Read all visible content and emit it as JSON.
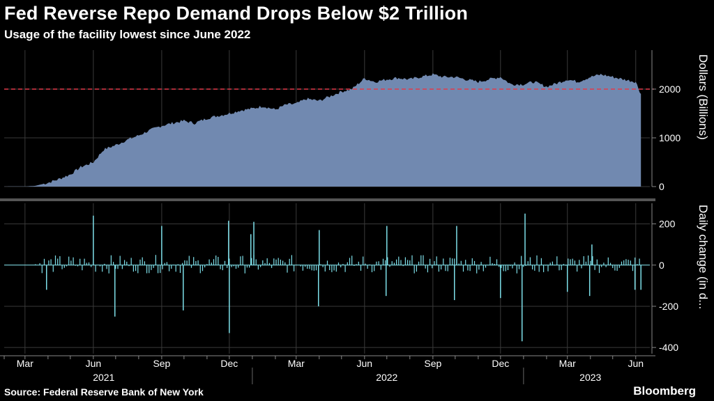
{
  "header": {
    "title": "Fed Reverse Repo Demand Drops Below $2 Trillion",
    "subtitle": "Usage of the facility lowest since June 2022"
  },
  "footer": {
    "source": "Source: Federal Reserve Bank of New York",
    "brand": "Bloomberg"
  },
  "colors": {
    "background": "#000000",
    "area_fill": "#7189b0",
    "bar": "#7ee0ea",
    "reference_line": "#e23b4b",
    "grid": "#3a3a3a"
  },
  "chart_data": [
    {
      "type": "area",
      "ylabel": "Dollars (Billions)",
      "ylim": [
        0,
        2800
      ],
      "yticks": [
        "0",
        "1000",
        "2000"
      ],
      "reference_line": {
        "value": 2000,
        "style": "dashed"
      },
      "grid": true,
      "x": [
        "2021-02-01",
        "2021-03-01",
        "2021-03-15",
        "2021-04-01",
        "2021-04-15",
        "2021-05-01",
        "2021-05-15",
        "2021-06-01",
        "2021-06-15",
        "2021-07-01",
        "2021-07-15",
        "2021-08-01",
        "2021-08-15",
        "2021-09-01",
        "2021-09-15",
        "2021-10-01",
        "2021-10-15",
        "2021-11-01",
        "2021-11-15",
        "2021-12-01",
        "2021-12-15",
        "2022-01-01",
        "2022-01-15",
        "2022-02-01",
        "2022-02-15",
        "2022-03-01",
        "2022-03-15",
        "2022-04-01",
        "2022-04-15",
        "2022-05-01",
        "2022-05-15",
        "2022-06-01",
        "2022-06-15",
        "2022-07-01",
        "2022-07-15",
        "2022-08-01",
        "2022-08-15",
        "2022-09-01",
        "2022-09-15",
        "2022-10-01",
        "2022-10-15",
        "2022-11-01",
        "2022-11-15",
        "2022-12-01",
        "2022-12-15",
        "2023-01-01",
        "2023-01-15",
        "2023-02-01",
        "2023-02-15",
        "2023-03-01",
        "2023-03-15",
        "2023-04-01",
        "2023-04-15",
        "2023-05-01",
        "2023-05-15",
        "2023-06-01",
        "2023-06-08"
      ],
      "values": [
        2,
        3,
        15,
        80,
        150,
        250,
        400,
        500,
        760,
        850,
        950,
        1050,
        1150,
        1250,
        1300,
        1350,
        1300,
        1400,
        1450,
        1500,
        1560,
        1600,
        1650,
        1580,
        1680,
        1700,
        1800,
        1760,
        1850,
        1950,
        2000,
        2220,
        2150,
        2200,
        2230,
        2200,
        2250,
        2300,
        2250,
        2250,
        2200,
        2150,
        2200,
        2250,
        2100,
        2100,
        2150,
        2050,
        2120,
        2200,
        2150,
        2250,
        2300,
        2250,
        2200,
        2150,
        1900
      ]
    },
    {
      "type": "bar",
      "ylabel": "Daily change (in d...",
      "ylim": [
        -430,
        300
      ],
      "yticks": [
        "200",
        "0",
        "-200",
        "-400"
      ],
      "grid": true,
      "xtick_labels": [
        "Mar",
        "Jun",
        "Sep",
        "Dec",
        "Mar",
        "Jun",
        "Sep",
        "Dec",
        "Mar",
        "Jun"
      ],
      "year_labels": [
        "2021",
        "2022",
        "2023"
      ],
      "x": [
        "2021-03-30",
        "2021-06-01",
        "2021-06-30",
        "2021-09-01",
        "2021-09-30",
        "2021-11-30",
        "2021-12-01",
        "2021-12-30",
        "2022-01-03",
        "2022-03-31",
        "2022-04-01",
        "2022-06-30",
        "2022-07-01",
        "2022-09-30",
        "2022-10-03",
        "2022-12-01",
        "2022-12-30",
        "2023-01-03",
        "2023-03-01",
        "2023-03-31",
        "2023-04-03",
        "2023-05-31",
        "2023-06-08"
      ],
      "values": [
        -120,
        240,
        -250,
        190,
        -220,
        215,
        -330,
        150,
        210,
        -200,
        170,
        -150,
        190,
        -170,
        190,
        -160,
        -370,
        250,
        -130,
        -150,
        100,
        -120,
        -120
      ]
    }
  ]
}
